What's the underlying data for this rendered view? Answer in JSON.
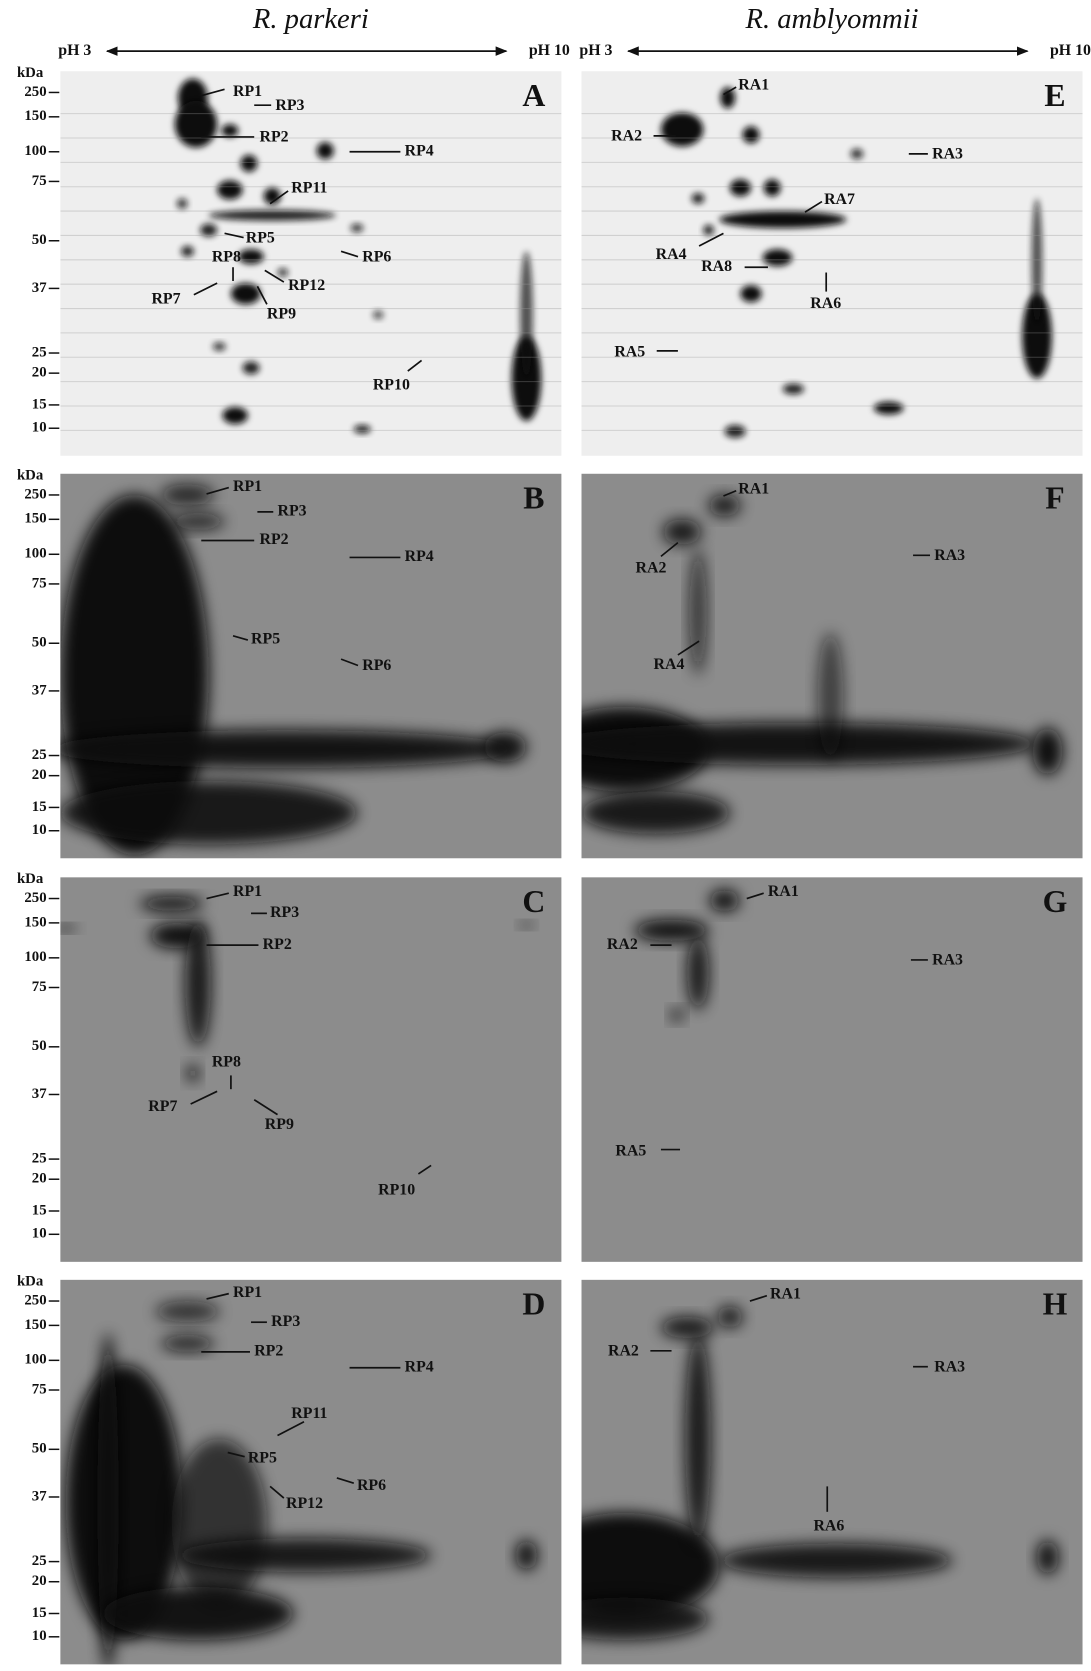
{
  "header": {
    "columns": [
      {
        "title": "R. parkeri",
        "ph_left": "pH 3",
        "ph_right": "pH 10"
      },
      {
        "title": "R. amblyommii",
        "ph_left": "pH 3",
        "ph_right": "pH 10"
      }
    ]
  },
  "kda_axis": {
    "unit": "kDa",
    "ticks": [
      "250",
      "150",
      "100",
      "75",
      "50",
      "37",
      "25",
      "20",
      "15",
      "10"
    ]
  },
  "panels": [
    {
      "letter": "A",
      "spots": [
        "RP1",
        "RP3",
        "RP2",
        "RP4",
        "RP11",
        "RP5",
        "RP6",
        "RP8",
        "RP12",
        "RP7",
        "RP9",
        "RP10"
      ]
    },
    {
      "letter": "E",
      "spots": [
        "RA1",
        "RA2",
        "RA3",
        "RA7",
        "RA4",
        "RA8",
        "RA6",
        "RA5"
      ]
    },
    {
      "letter": "B",
      "spots": [
        "RP1",
        "RP3",
        "RP2",
        "RP4",
        "RP5",
        "RP6"
      ]
    },
    {
      "letter": "F",
      "spots": [
        "RA1",
        "RA2",
        "RA3",
        "RA4"
      ]
    },
    {
      "letter": "C",
      "spots": [
        "RP1",
        "RP3",
        "RP2",
        "RP8",
        "RP7",
        "RP9",
        "RP10"
      ]
    },
    {
      "letter": "G",
      "spots": [
        "RA1",
        "RA2",
        "RA3",
        "RA5"
      ]
    },
    {
      "letter": "D",
      "spots": [
        "RP1",
        "RP3",
        "RP2",
        "RP4",
        "RP11",
        "RP5",
        "RP6",
        "RP12"
      ]
    },
    {
      "letter": "H",
      "spots": [
        "RA1",
        "RA2",
        "RA3",
        "RA6"
      ]
    }
  ]
}
